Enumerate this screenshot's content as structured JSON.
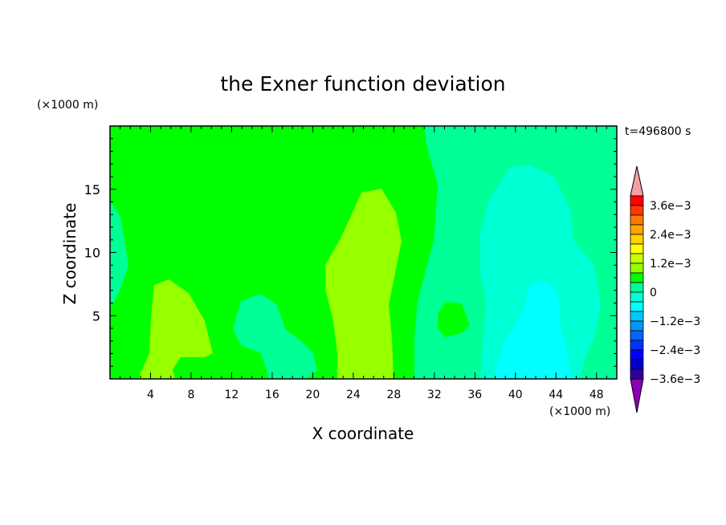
{
  "chart_data": {
    "type": "contour",
    "title": "the Exner function deviation",
    "xlabel": "X coordinate",
    "ylabel": "Z coordinate",
    "x_unit": "(×1000 m)",
    "y_unit": "(×1000 m)",
    "time_label": "t=496800 s",
    "xlim": [
      0,
      50
    ],
    "ylim": [
      0,
      20
    ],
    "x_ticks": [
      "4",
      "8",
      "12",
      "16",
      "20",
      "24",
      "28",
      "32",
      "36",
      "40",
      "44",
      "48"
    ],
    "y_ticks": [
      "5",
      "10",
      "15"
    ],
    "colorbar": {
      "labels": [
        "3.6e−3",
        "2.4e−3",
        "1.2e−3",
        "0",
        "−1.2e−3",
        "−2.4e−3",
        "−3.6e−3"
      ],
      "colors": [
        "#ff0000",
        "#ff3a00",
        "#ff7a00",
        "#ffa500",
        "#ffd200",
        "#ffff00",
        "#c8ff00",
        "#96ff00",
        "#00ff00",
        "#00ff96",
        "#00ffd2",
        "#00ffff",
        "#00c8ff",
        "#0096ff",
        "#0064ff",
        "#0032ff",
        "#0000ff",
        "#0000c8",
        "#3200a0"
      ],
      "over_color": "#f4a0a0",
      "under_color": "#8c00b4"
    },
    "region_colors": {
      "background": "#00ff00",
      "light_negative": "#00ff96",
      "moderate_negative": "#00ffd2",
      "strong_negative": "#00ffff",
      "positive": "#96ff00"
    }
  }
}
